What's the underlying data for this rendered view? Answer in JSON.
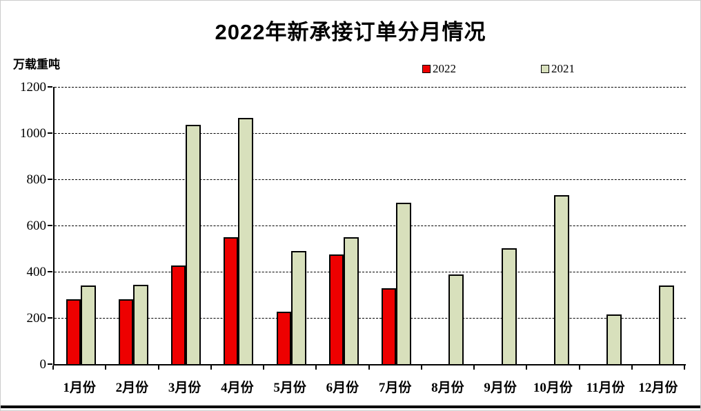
{
  "chart_data": {
    "type": "bar",
    "title": "2022年新承接订单分月情况",
    "unit_label": "万载重吨",
    "categories": [
      "1月份",
      "2月份",
      "3月份",
      "4月份",
      "5月份",
      "6月份",
      "7月份",
      "8月份",
      "9月份",
      "10月份",
      "11月份",
      "12月份"
    ],
    "series": [
      {
        "name": "2022",
        "color": "#ee0000",
        "values": [
          280,
          282,
          428,
          548,
          228,
          475,
          328,
          null,
          null,
          null,
          null,
          null
        ]
      },
      {
        "name": "2021",
        "color": "#d8e0bc",
        "values": [
          340,
          342,
          1037,
          1067,
          489,
          550,
          699,
          389,
          502,
          732,
          216,
          341
        ]
      }
    ],
    "ylim": [
      0,
      1200
    ],
    "ytick_interval": 200,
    "yticks": [
      "1200",
      "1000",
      "800",
      "600",
      "400",
      "200",
      "0"
    ],
    "grid": "horizontal-dashed",
    "legend_position": "top-right",
    "bar_border_color": "#000000"
  }
}
